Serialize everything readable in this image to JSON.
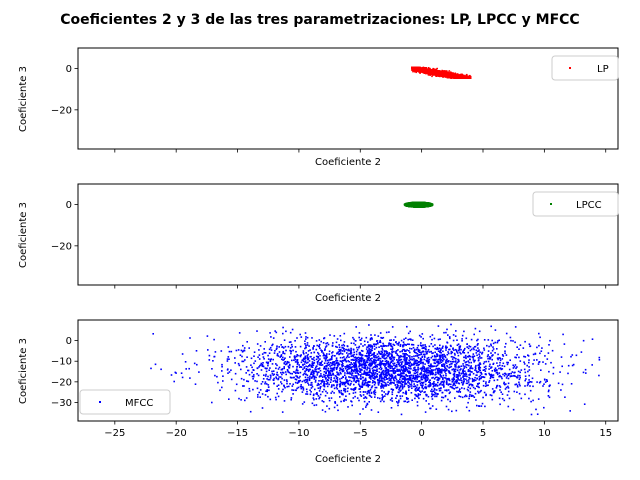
{
  "chart_data": {
    "title": "Coeficientes 2 y 3 de las tres parametrizaciones: LP, LPCC y MFCC",
    "type": "scatter",
    "shared_x": true,
    "xlim": [
      -28,
      16
    ],
    "x_ticks": [
      -25,
      -20,
      -15,
      -10,
      -5,
      0,
      5,
      10,
      15
    ],
    "panels": [
      {
        "name": "LP",
        "xlabel": "Coeficiente 2",
        "ylabel": "Coeficiente 3",
        "ylim": [
          -39,
          10
        ],
        "y_ticks": [
          0,
          -20
        ],
        "legend": {
          "label": "LP",
          "color": "#ff0000",
          "placement": "upper right"
        },
        "series": [
          {
            "name": "LP",
            "color": "#ff0000",
            "marker_size": "small",
            "cluster": {
              "x_range": [
                -0.8,
                4.0
              ],
              "y_range": [
                -4.6,
                0.6
              ],
              "trend": "y decreases as x increases (approx. slope -1.1)",
              "approx_points": 6000
            }
          }
        ]
      },
      {
        "name": "LPCC",
        "xlabel": "Coeficiente 2",
        "ylabel": "Coeficiente 3",
        "ylim": [
          -39,
          10
        ],
        "y_ticks": [
          0,
          -20
        ],
        "legend": {
          "label": "LPCC",
          "color": "#008000",
          "placement": "upper right"
        },
        "series": [
          {
            "name": "LPCC",
            "color": "#008000",
            "marker_size": "small",
            "cluster": {
              "x_range": [
                -1.4,
                0.9
              ],
              "y_range": [
                -1.2,
                1.1
              ],
              "approx_points": 6000
            }
          }
        ]
      },
      {
        "name": "MFCC",
        "xlabel": "Coeficiente 2",
        "ylabel": "Coeficiente 3",
        "ylim": [
          -39,
          10
        ],
        "y_ticks": [
          0,
          -10,
          -20,
          -30
        ],
        "legend": {
          "label": "MFCC",
          "color": "#0000ff",
          "placement": "lower left"
        },
        "series": [
          {
            "name": "MFCC",
            "color": "#0000ff",
            "marker_size": "small",
            "cluster": {
              "x_range": [
                -26,
                14.5
              ],
              "y_range": [
                -36,
                8
              ],
              "center": [
                -2.5,
                -14
              ],
              "spread_x": 6.0,
              "spread_y": 8.0,
              "approx_points": 4500
            }
          }
        ]
      }
    ]
  }
}
